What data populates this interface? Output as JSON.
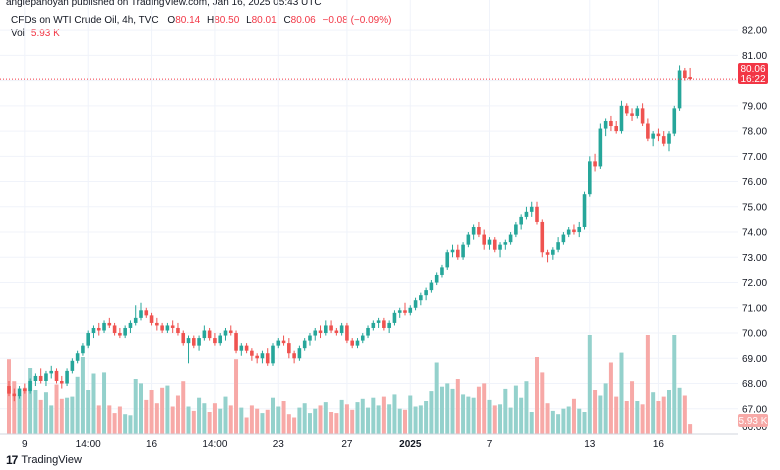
{
  "publisher_line": "angiepanoyan published on TradingView.com, Jan 16, 2025 05:43 UTC",
  "legend": {
    "symbol": "CFDs on WTI Crude Oil, 4h, TVC",
    "o_label": "O",
    "o_value": "80.14",
    "h_label": "H",
    "h_value": "80.50",
    "l_label": "L",
    "l_value": "80.01",
    "c_label": "C",
    "c_value": "80.06",
    "change": "−0.08 (−0.09%)"
  },
  "volume_legend": {
    "label": "Vol",
    "value": "5.93 K"
  },
  "last_price_badge": {
    "price": "80.06",
    "countdown": "16:22"
  },
  "volume_badge": "5.93 K",
  "footer": {
    "logo_glyph": "17",
    "brand": "TradingView"
  },
  "colors": {
    "up": "#26a69a",
    "down": "#ef5350",
    "up_volume": "#94d1cc",
    "down_volume": "#f7a9a7",
    "grid": "#f0f3fa",
    "price_line": "#f23645"
  },
  "chart_data": {
    "type": "candlestick",
    "ylim": [
      66.0,
      82.4
    ],
    "yticks": [
      82,
      81,
      80,
      79,
      78,
      77,
      76,
      75,
      74,
      73,
      72,
      71,
      70,
      69,
      68,
      67
    ],
    "ytick_labels": [
      "82.00",
      "81.00",
      "80.00",
      "79.00",
      "78.00",
      "77.00",
      "76.00",
      "75.00",
      "74.00",
      "73.00",
      "72.00",
      "71.00",
      "70.00",
      "69.00",
      "68.00",
      "67.00"
    ],
    "bottom_tick_label": "66.00",
    "xtick_labels": [
      {
        "label": "9",
        "index": 3
      },
      {
        "label": "14:00",
        "index": 15
      },
      {
        "label": "16",
        "index": 27
      },
      {
        "label": "14:00",
        "index": 39
      },
      {
        "label": "23",
        "index": 51
      },
      {
        "label": "27",
        "index": 64
      },
      {
        "label": "2025",
        "index": 76
      },
      {
        "label": "7",
        "index": 91
      },
      {
        "label": "13",
        "index": 110
      },
      {
        "label": "16",
        "index": 123
      }
    ],
    "volume_max": 10,
    "candles": [
      [
        67.9,
        68.1,
        67.5,
        67.6,
        6.8
      ],
      [
        67.6,
        67.8,
        67.3,
        67.5,
        4.8
      ],
      [
        67.5,
        67.9,
        67.4,
        67.8,
        3.5
      ],
      [
        67.8,
        68.0,
        67.6,
        67.7,
        4.2
      ],
      [
        67.7,
        68.2,
        67.6,
        68.1,
        6.0
      ],
      [
        68.1,
        68.4,
        67.9,
        68.3,
        4.0
      ],
      [
        68.3,
        68.6,
        68.0,
        68.1,
        3.1
      ],
      [
        68.1,
        68.5,
        67.9,
        68.4,
        3.8
      ],
      [
        68.4,
        68.7,
        68.2,
        68.5,
        2.6
      ],
      [
        68.5,
        68.6,
        68.0,
        68.1,
        4.5
      ],
      [
        68.1,
        68.3,
        67.8,
        68.0,
        3.2
      ],
      [
        68.0,
        68.6,
        67.9,
        68.5,
        3.3
      ],
      [
        68.5,
        69.0,
        68.4,
        68.9,
        3.4
      ],
      [
        68.9,
        69.3,
        68.8,
        69.2,
        5.2
      ],
      [
        69.2,
        69.6,
        69.1,
        69.5,
        7.0
      ],
      [
        69.5,
        70.1,
        69.4,
        70.0,
        4.0
      ],
      [
        70.0,
        70.3,
        69.8,
        70.2,
        5.5
      ],
      [
        70.2,
        70.4,
        69.9,
        70.1,
        2.6
      ],
      [
        70.1,
        70.5,
        70.0,
        70.4,
        5.6
      ],
      [
        70.4,
        70.6,
        70.2,
        70.3,
        2.6
      ],
      [
        70.3,
        70.4,
        69.9,
        70.0,
        1.9
      ],
      [
        70.0,
        70.2,
        69.8,
        69.9,
        2.5
      ],
      [
        69.9,
        70.3,
        69.8,
        70.2,
        1.8
      ],
      [
        70.2,
        70.5,
        70.0,
        70.4,
        1.7
      ],
      [
        70.4,
        71.1,
        70.3,
        70.6,
        5.0
      ],
      [
        70.6,
        71.2,
        70.5,
        70.9,
        4.6
      ],
      [
        70.9,
        71.0,
        70.6,
        70.7,
        3.1
      ],
      [
        70.7,
        70.8,
        70.3,
        70.4,
        4.0
      ],
      [
        70.4,
        70.6,
        70.1,
        70.3,
        2.8
      ],
      [
        70.3,
        70.4,
        70.0,
        70.1,
        4.2
      ],
      [
        70.1,
        70.4,
        70.0,
        70.3,
        4.4
      ],
      [
        70.3,
        70.5,
        70.0,
        70.2,
        2.5
      ],
      [
        70.2,
        70.4,
        69.9,
        70.0,
        3.5
      ],
      [
        70.0,
        70.1,
        69.5,
        69.6,
        4.8
      ],
      [
        69.6,
        69.9,
        68.8,
        69.8,
        2.5
      ],
      [
        69.8,
        69.9,
        69.4,
        69.5,
        2.1
      ],
      [
        69.5,
        69.9,
        69.3,
        69.8,
        3.3
      ],
      [
        69.8,
        70.3,
        69.7,
        70.1,
        2.8
      ],
      [
        70.1,
        70.2,
        69.7,
        69.8,
        2.0
      ],
      [
        69.8,
        70.0,
        69.5,
        69.6,
        2.8
      ],
      [
        69.6,
        70.0,
        69.5,
        69.9,
        2.3
      ],
      [
        69.9,
        70.2,
        69.7,
        70.1,
        3.4
      ],
      [
        70.1,
        70.3,
        69.9,
        70.0,
        2.6
      ],
      [
        70.0,
        70.1,
        69.2,
        69.3,
        6.8
      ],
      [
        69.3,
        69.6,
        69.1,
        69.5,
        2.4
      ],
      [
        69.5,
        69.6,
        69.2,
        69.3,
        1.5
      ],
      [
        69.3,
        69.4,
        68.9,
        69.1,
        2.6
      ],
      [
        69.1,
        69.2,
        68.8,
        69.0,
        2.3
      ],
      [
        69.0,
        69.3,
        68.8,
        69.2,
        1.9
      ],
      [
        69.2,
        69.4,
        68.7,
        68.8,
        2.2
      ],
      [
        68.8,
        69.6,
        68.7,
        69.5,
        3.3
      ],
      [
        69.5,
        69.8,
        69.4,
        69.7,
        2.5
      ],
      [
        69.7,
        69.9,
        69.5,
        69.6,
        3.0
      ],
      [
        69.6,
        69.8,
        69.0,
        69.2,
        1.8
      ],
      [
        69.2,
        69.3,
        68.8,
        69.0,
        1.5
      ],
      [
        69.0,
        69.5,
        68.9,
        69.4,
        2.4
      ],
      [
        69.4,
        69.8,
        69.3,
        69.7,
        2.8
      ],
      [
        69.7,
        70.0,
        69.5,
        69.9,
        1.9
      ],
      [
        69.9,
        70.2,
        69.7,
        70.1,
        2.3
      ],
      [
        70.1,
        70.3,
        69.8,
        70.0,
        2.6
      ],
      [
        70.0,
        70.5,
        69.9,
        70.3,
        2.9
      ],
      [
        70.3,
        70.5,
        70.0,
        70.1,
        2.0
      ],
      [
        70.1,
        70.2,
        69.9,
        70.0,
        1.9
      ],
      [
        70.0,
        70.4,
        69.9,
        70.3,
        3.1
      ],
      [
        70.3,
        70.4,
        69.6,
        69.7,
        2.7
      ],
      [
        69.7,
        69.8,
        69.4,
        69.5,
        2.2
      ],
      [
        69.5,
        69.8,
        69.4,
        69.7,
        2.9
      ],
      [
        69.7,
        70.0,
        69.6,
        69.9,
        3.2
      ],
      [
        69.9,
        70.3,
        69.8,
        70.2,
        2.4
      ],
      [
        70.2,
        70.5,
        70.1,
        70.4,
        3.3
      ],
      [
        70.4,
        70.6,
        70.2,
        70.5,
        2.6
      ],
      [
        70.5,
        70.6,
        70.1,
        70.2,
        3.4
      ],
      [
        70.2,
        70.5,
        70.0,
        70.4,
        2.7
      ],
      [
        70.4,
        70.9,
        70.3,
        70.8,
        3.6
      ],
      [
        70.8,
        71.0,
        70.6,
        70.9,
        2.3
      ],
      [
        70.9,
        71.2,
        70.7,
        70.8,
        2.2
      ],
      [
        70.8,
        71.1,
        70.7,
        71.0,
        3.5
      ],
      [
        71.0,
        71.4,
        70.9,
        71.3,
        2.5
      ],
      [
        71.3,
        71.6,
        71.1,
        71.5,
        2.6
      ],
      [
        71.5,
        71.8,
        71.3,
        71.7,
        3.0
      ],
      [
        71.7,
        72.1,
        71.6,
        72.0,
        3.9
      ],
      [
        72.0,
        72.4,
        71.9,
        72.3,
        6.5
      ],
      [
        72.3,
        72.7,
        72.2,
        72.6,
        4.3
      ],
      [
        72.6,
        73.3,
        72.5,
        73.2,
        4.6
      ],
      [
        73.2,
        73.5,
        73.0,
        73.3,
        4.1
      ],
      [
        73.3,
        73.5,
        72.9,
        73.0,
        5.0
      ],
      [
        73.0,
        73.6,
        72.9,
        73.5,
        3.6
      ],
      [
        73.5,
        74.0,
        73.4,
        73.9,
        3.4
      ],
      [
        73.9,
        74.3,
        73.7,
        74.2,
        3.3
      ],
      [
        74.2,
        74.4,
        73.8,
        73.9,
        4.3
      ],
      [
        73.9,
        74.1,
        73.3,
        73.5,
        4.6
      ],
      [
        73.5,
        73.8,
        73.3,
        73.7,
        3.1
      ],
      [
        73.7,
        73.8,
        73.2,
        73.3,
        2.6
      ],
      [
        73.3,
        73.6,
        73.0,
        73.5,
        2.7
      ],
      [
        73.5,
        73.7,
        73.3,
        73.6,
        4.1
      ],
      [
        73.6,
        74.0,
        73.5,
        73.9,
        2.4
      ],
      [
        73.9,
        74.4,
        73.8,
        74.3,
        4.4
      ],
      [
        74.3,
        74.7,
        74.1,
        74.6,
        3.3
      ],
      [
        74.6,
        75.0,
        74.5,
        74.8,
        4.8
      ],
      [
        74.8,
        75.2,
        74.6,
        75.0,
        2.0
      ],
      [
        75.0,
        75.2,
        74.3,
        74.4,
        7.0
      ],
      [
        74.4,
        74.5,
        73.0,
        73.2,
        5.6
      ],
      [
        73.2,
        73.3,
        72.8,
        73.1,
        2.8
      ],
      [
        73.1,
        73.4,
        72.9,
        73.3,
        2.1
      ],
      [
        73.3,
        73.8,
        73.2,
        73.6,
        1.8
      ],
      [
        73.6,
        74.0,
        73.5,
        73.9,
        2.3
      ],
      [
        73.9,
        74.2,
        73.8,
        74.1,
        2.5
      ],
      [
        74.1,
        74.3,
        73.9,
        74.0,
        3.2
      ],
      [
        74.0,
        74.4,
        73.8,
        74.2,
        2.3
      ],
      [
        74.2,
        75.6,
        74.1,
        75.5,
        2.0
      ],
      [
        75.5,
        77.0,
        75.4,
        76.8,
        9.0
      ],
      [
        76.8,
        77.1,
        76.4,
        76.6,
        4.0
      ],
      [
        76.6,
        78.3,
        76.5,
        78.1,
        3.5
      ],
      [
        78.1,
        78.5,
        77.8,
        78.4,
        4.6
      ],
      [
        78.4,
        78.6,
        78.0,
        78.2,
        6.5
      ],
      [
        78.2,
        78.4,
        77.9,
        78.0,
        3.4
      ],
      [
        78.0,
        79.2,
        77.9,
        79.0,
        7.4
      ],
      [
        79.0,
        79.1,
        78.6,
        78.7,
        3.0
      ],
      [
        78.7,
        78.9,
        78.4,
        78.6,
        4.8
      ],
      [
        78.6,
        79.0,
        78.5,
        78.9,
        3.0
      ],
      [
        78.9,
        79.1,
        78.2,
        78.3,
        2.7
      ],
      [
        78.3,
        78.5,
        77.6,
        77.7,
        9.0
      ],
      [
        77.7,
        78.0,
        77.4,
        77.9,
        3.8
      ],
      [
        77.9,
        78.1,
        77.6,
        77.8,
        3.0
      ],
      [
        77.8,
        78.0,
        77.4,
        77.5,
        3.4
      ],
      [
        77.5,
        78.0,
        77.2,
        77.9,
        4.0
      ],
      [
        77.9,
        79.0,
        77.8,
        78.9,
        9.0
      ],
      [
        78.9,
        80.6,
        78.8,
        80.4,
        4.2
      ],
      [
        80.4,
        80.5,
        80.0,
        80.1,
        3.5
      ],
      [
        80.14,
        80.5,
        80.01,
        80.06,
        0.9
      ]
    ]
  }
}
